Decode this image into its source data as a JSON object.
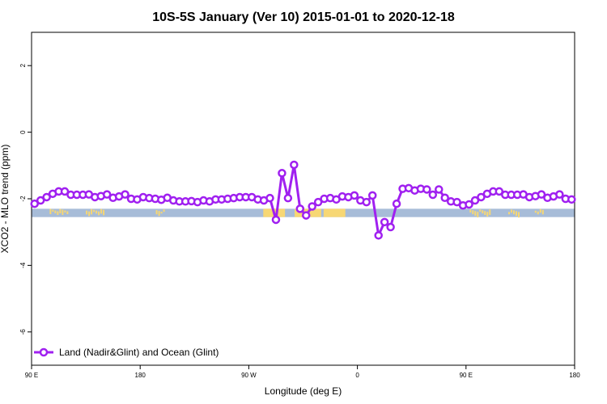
{
  "chart_data": {
    "type": "line",
    "title": "10S-5S January (Ver 10)   2015-01-01 to 2020-12-18",
    "xlabel": "Longitude (deg E)",
    "ylabel": "XCO2 - MLO trend (ppm)",
    "xlim": [
      90,
      540
    ],
    "ylim": [
      -7,
      3
    ],
    "x_ticks": [
      {
        "value": 90,
        "label": "90 E"
      },
      {
        "value": 180,
        "label": "180"
      },
      {
        "value": 270,
        "label": "90 W"
      },
      {
        "value": 360,
        "label": "0"
      },
      {
        "value": 450,
        "label": "90 E"
      },
      {
        "value": 540,
        "label": "180"
      }
    ],
    "y_ticks": [
      {
        "value": 2,
        "label": "2"
      },
      {
        "value": 0,
        "label": "0"
      },
      {
        "value": -2,
        "label": "-2"
      },
      {
        "value": -4,
        "label": "-4"
      },
      {
        "value": -6,
        "label": "-6"
      }
    ],
    "grid": false,
    "legend_position": "bottom-left",
    "colors": {
      "series": "#a020f0",
      "ocean_band": "#a7bcd8",
      "land_band": "#f7d774"
    },
    "series": [
      {
        "name": "Land (Nadir&Glint) and Ocean (Glint)",
        "x": [
          92.5,
          97.5,
          102.5,
          107.5,
          112.5,
          117.5,
          122.5,
          127.5,
          132.5,
          137.5,
          142.5,
          147.5,
          152.5,
          157.5,
          162.5,
          167.5,
          172.5,
          177.5,
          182.5,
          187.5,
          192.5,
          197.5,
          202.5,
          207.5,
          212.5,
          217.5,
          222.5,
          227.5,
          232.5,
          237.5,
          242.5,
          247.5,
          252.5,
          257.5,
          262.5,
          267.5,
          272.5,
          277.5,
          282.5,
          287.5,
          292.5,
          297.5,
          302.5,
          307.5,
          312.5,
          317.5,
          322.5,
          327.5,
          332.5,
          337.5,
          342.5,
          347.5,
          352.5,
          357.5,
          362.5,
          367.5,
          372.5,
          377.5,
          382.5,
          387.5,
          392.5,
          397.5,
          402.5,
          407.5,
          412.5,
          417.5,
          422.5,
          427.5,
          432.5,
          437.5,
          442.5,
          447.5,
          452.5,
          457.5,
          462.5,
          467.5,
          472.5,
          477.5,
          482.5,
          487.5,
          492.5,
          497.5,
          502.5,
          507.5,
          512.5,
          517.5,
          522.5,
          527.5,
          532.5,
          537.5
        ],
        "y": [
          -2.15,
          -2.05,
          -1.95,
          -1.85,
          -1.78,
          -1.78,
          -1.88,
          -1.88,
          -1.88,
          -1.87,
          -1.95,
          -1.92,
          -1.87,
          -1.97,
          -1.93,
          -1.87,
          -2.0,
          -2.02,
          -1.95,
          -1.98,
          -2.0,
          -2.03,
          -1.97,
          -2.05,
          -2.08,
          -2.08,
          -2.07,
          -2.1,
          -2.05,
          -2.08,
          -2.02,
          -2.02,
          -2.0,
          -1.98,
          -1.95,
          -1.95,
          -1.95,
          -2.02,
          -2.05,
          -1.98,
          -2.63,
          -1.23,
          -1.98,
          -0.98,
          -2.3,
          -2.5,
          -2.23,
          -2.1,
          -2.0,
          -1.98,
          -2.02,
          -1.93,
          -1.95,
          -1.9,
          -2.05,
          -2.1,
          -1.9,
          -3.1,
          -2.7,
          -2.85,
          -2.15,
          -1.7,
          -1.68,
          -1.75,
          -1.7,
          -1.72,
          -1.88,
          -1.72,
          -1.97,
          -2.08,
          -2.1,
          -2.2,
          -2.17,
          -2.05,
          -1.95,
          -1.85,
          -1.78,
          -1.78,
          -1.88,
          -1.88,
          -1.88,
          -1.87,
          -1.95,
          -1.92,
          -1.87,
          -1.97,
          -1.93,
          -1.87,
          -2.0,
          -2.02
        ]
      }
    ],
    "landmask_band": {
      "y_top": -2.3,
      "y_bottom": -2.55,
      "land_ranges": [
        [
          282,
          300
        ],
        [
          308,
          330
        ],
        [
          332,
          350
        ]
      ],
      "land_texture_ranges": [
        [
          105,
          120
        ],
        [
          135,
          150
        ],
        [
          193,
          200
        ],
        [
          453,
          470
        ],
        [
          485,
          495
        ],
        [
          507,
          515
        ]
      ]
    }
  }
}
